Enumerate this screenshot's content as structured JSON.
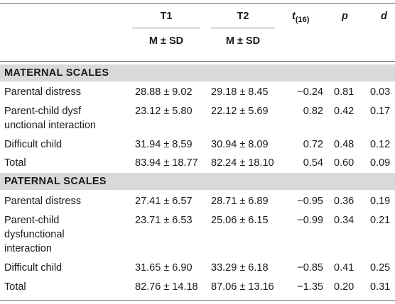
{
  "header": {
    "t1": "T1",
    "t2": "T2",
    "t_main": "t",
    "t_sub": "(16)",
    "p": "p",
    "d": "d",
    "msd1": "M ± SD",
    "msd2": "M ± SD"
  },
  "maternal": {
    "title": "MATERNAL SCALES",
    "rows": [
      {
        "label": [
          "Parental distress"
        ],
        "t1": "28.88 ± 9.02",
        "t2": "29.18 ± 8.45",
        "t": "−0.24",
        "p": "0.81",
        "d": "0.03"
      },
      {
        "label": [
          "Parent-child dysf",
          "unctional interaction"
        ],
        "t1": "23.12 ± 5.80",
        "t2": "22.12 ± 5.69",
        "t": "0.82",
        "p": "0.42",
        "d": "0.17"
      },
      {
        "label": [
          "Difficult child"
        ],
        "t1": "31.94 ± 8.59",
        "t2": "30.94 ± 8.09",
        "t": "0.72",
        "p": "0.48",
        "d": "0.12"
      },
      {
        "label": [
          "Total"
        ],
        "t1": "83.94 ± 18.77",
        "t2": "82.24 ± 18.10",
        "t": "0.54",
        "p": "0.60",
        "d": "0.09"
      }
    ]
  },
  "paternal": {
    "title": "PATERNAL SCALES",
    "rows": [
      {
        "label": [
          "Parental distress"
        ],
        "t1": "27.41 ± 6.57",
        "t2": "28.71 ± 6.89",
        "t": "−0.95",
        "p": "0.36",
        "d": "0.19"
      },
      {
        "label": [
          "Parent-child",
          "dysfunctional",
          "interaction"
        ],
        "t1": "23.71 ± 6.53",
        "t2": "25.06 ± 6.15",
        "t": "−0.99",
        "p": "0.34",
        "d": "0.21"
      },
      {
        "label": [
          "Difficult child"
        ],
        "t1": "31.65 ± 6.90",
        "t2": "33.29 ± 6.18",
        "t": "−0.85",
        "p": "0.41",
        "d": "0.25"
      },
      {
        "label": [
          "Total"
        ],
        "t1": "82.76 ± 14.18",
        "t2": "87.06 ± 13.16",
        "t": "−1.35",
        "p": "0.20",
        "d": "0.31"
      }
    ]
  }
}
